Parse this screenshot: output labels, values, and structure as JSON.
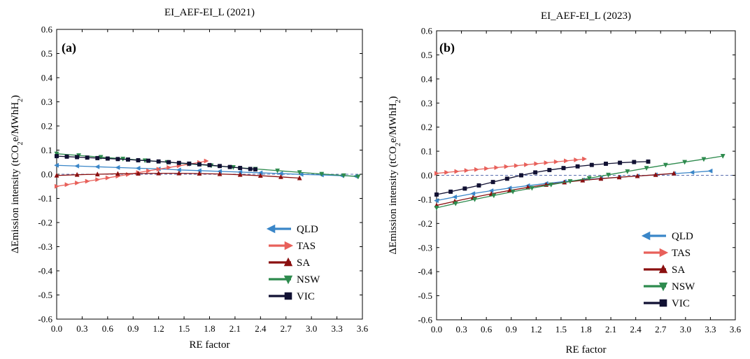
{
  "chart_data": [
    {
      "type": "line",
      "panel_label": "(a)",
      "title": "EI_AEF-EI_L (2021)",
      "xlabel": "RE factor",
      "ylabel": "ΔEmission intensity (tCO2e/MWhH2)",
      "xlim": [
        0,
        3.6
      ],
      "ylim": [
        -0.6,
        0.6
      ],
      "xticks": [
        "0.0",
        "0.3",
        "0.6",
        "0.9",
        "1.2",
        "1.5",
        "1.8",
        "2.1",
        "2.4",
        "2.7",
        "3.0",
        "3.3",
        "3.6"
      ],
      "yticks": [
        "0.6",
        "0.5",
        "0.4",
        "0.3",
        "0.2",
        "0.1",
        "0.0",
        "-0.1",
        "-0.2",
        "-0.3",
        "-0.4",
        "-0.5",
        "-0.6"
      ],
      "legend_position": "bottom-right",
      "zero_line": true,
      "series": [
        {
          "name": "QLD",
          "color": "#3a86c8",
          "marker": "triangle-left",
          "x": [
            0,
            0.24,
            0.48,
            0.72,
            0.96,
            1.2,
            1.44,
            1.68,
            1.92,
            2.16,
            2.4,
            2.64,
            2.88,
            3.12,
            3.36,
            3.52
          ],
          "y": [
            0.037,
            0.034,
            0.031,
            0.028,
            0.025,
            0.022,
            0.018,
            0.015,
            0.012,
            0.009,
            0.006,
            0.003,
            -0.0005,
            -0.003,
            -0.006,
            -0.008
          ]
        },
        {
          "name": "TAS",
          "color": "#e8605a",
          "marker": "triangle-right",
          "x": [
            0,
            0.12,
            0.24,
            0.36,
            0.48,
            0.6,
            0.72,
            0.84,
            0.96,
            1.08,
            1.2,
            1.32,
            1.44,
            1.56,
            1.68,
            1.76
          ],
          "y": [
            -0.05,
            -0.043,
            -0.036,
            -0.029,
            -0.022,
            -0.015,
            -0.008,
            -0.001,
            0.007,
            0.014,
            0.021,
            0.028,
            0.035,
            0.042,
            0.049,
            0.055
          ]
        },
        {
          "name": "SA",
          "color": "#8b1010",
          "marker": "triangle-up",
          "x": [
            0,
            0.24,
            0.48,
            0.72,
            0.96,
            1.2,
            1.44,
            1.68,
            1.92,
            2.16,
            2.4,
            2.64,
            2.86
          ],
          "y": [
            -0.005,
            -0.002,
            0.0,
            0.002,
            0.003,
            0.004,
            0.004,
            0.003,
            0.001,
            -0.002,
            -0.006,
            -0.011,
            -0.016
          ]
        },
        {
          "name": "NSW",
          "color": "#2e8b4e",
          "marker": "triangle-down",
          "x": [
            0,
            0.26,
            0.52,
            0.78,
            1.04,
            1.3,
            1.56,
            1.82,
            2.08,
            2.34,
            2.6,
            2.86,
            3.12,
            3.38,
            3.55
          ],
          "y": [
            0.085,
            0.078,
            0.071,
            0.064,
            0.057,
            0.05,
            0.043,
            0.036,
            0.029,
            0.022,
            0.015,
            0.008,
            0.001,
            -0.005,
            -0.01
          ]
        },
        {
          "name": "VIC",
          "color": "#111133",
          "marker": "square",
          "x": [
            0,
            0.12,
            0.24,
            0.36,
            0.48,
            0.6,
            0.72,
            0.84,
            0.96,
            1.08,
            1.2,
            1.32,
            1.44,
            1.56,
            1.68,
            1.8,
            1.92,
            2.04,
            2.16,
            2.28,
            2.34
          ],
          "y": [
            0.075,
            0.073,
            0.071,
            0.069,
            0.067,
            0.065,
            0.063,
            0.061,
            0.058,
            0.056,
            0.053,
            0.05,
            0.047,
            0.044,
            0.041,
            0.038,
            0.034,
            0.03,
            0.026,
            0.022,
            0.02
          ]
        }
      ]
    },
    {
      "type": "line",
      "panel_label": "(b)",
      "title": "EI_AEF-EI_L (2023)",
      "xlabel": "RE factor",
      "ylabel": "ΔEmission intensity (tCO2e/MWhH2)",
      "xlim": [
        0,
        3.6
      ],
      "ylim": [
        -0.6,
        0.6
      ],
      "xticks": [
        "0.0",
        "0.3",
        "0.6",
        "0.9",
        "1.2",
        "1.5",
        "1.8",
        "2.1",
        "2.4",
        "2.7",
        "3.0",
        "3.3",
        "3.6"
      ],
      "yticks": [
        "0.6",
        "0.5",
        "0.4",
        "0.3",
        "0.2",
        "0.1",
        "0.0",
        "-0.1",
        "-0.2",
        "-0.3",
        "-0.4",
        "-0.5",
        "-0.6"
      ],
      "legend_position": "bottom-right",
      "zero_line": true,
      "series": [
        {
          "name": "QLD",
          "color": "#3a86c8",
          "marker": "triangle-left",
          "x": [
            0,
            0.22,
            0.44,
            0.66,
            0.88,
            1.1,
            1.32,
            1.54,
            1.76,
            1.98,
            2.2,
            2.42,
            2.64,
            2.86,
            3.08,
            3.3
          ],
          "y": [
            -0.105,
            -0.09,
            -0.076,
            -0.064,
            -0.053,
            -0.043,
            -0.034,
            -0.026,
            -0.019,
            -0.013,
            -0.008,
            -0.003,
            0.002,
            0.007,
            0.012,
            0.018
          ]
        },
        {
          "name": "TAS",
          "color": "#e8605a",
          "marker": "triangle-right",
          "x": [
            0,
            0.12,
            0.24,
            0.36,
            0.48,
            0.6,
            0.72,
            0.84,
            0.96,
            1.08,
            1.2,
            1.32,
            1.44,
            1.56,
            1.68,
            1.78
          ],
          "y": [
            0.008,
            0.012,
            0.016,
            0.02,
            0.024,
            0.028,
            0.032,
            0.036,
            0.04,
            0.044,
            0.048,
            0.052,
            0.056,
            0.06,
            0.064,
            0.068
          ]
        },
        {
          "name": "SA",
          "color": "#8b1010",
          "marker": "triangle-up",
          "x": [
            0,
            0.22,
            0.44,
            0.66,
            0.88,
            1.1,
            1.32,
            1.54,
            1.76,
            1.98,
            2.2,
            2.42,
            2.64,
            2.86
          ],
          "y": [
            -0.125,
            -0.108,
            -0.092,
            -0.077,
            -0.063,
            -0.05,
            -0.039,
            -0.029,
            -0.021,
            -0.014,
            -0.008,
            -0.003,
            0.002,
            0.008
          ]
        },
        {
          "name": "NSW",
          "color": "#2e8b4e",
          "marker": "triangle-down",
          "x": [
            0,
            0.23,
            0.46,
            0.69,
            0.92,
            1.15,
            1.38,
            1.61,
            1.84,
            2.07,
            2.3,
            2.53,
            2.76,
            2.99,
            3.22,
            3.45
          ],
          "y": [
            -0.135,
            -0.117,
            -0.1,
            -0.084,
            -0.068,
            -0.053,
            -0.039,
            -0.025,
            -0.012,
            0.002,
            0.016,
            0.03,
            0.043,
            0.055,
            0.067,
            0.08
          ]
        },
        {
          "name": "VIC",
          "color": "#111133",
          "marker": "square",
          "x": [
            0,
            0.17,
            0.34,
            0.51,
            0.68,
            0.85,
            1.02,
            1.19,
            1.36,
            1.53,
            1.7,
            1.87,
            2.04,
            2.21,
            2.38,
            2.55
          ],
          "y": [
            -0.08,
            -0.068,
            -0.055,
            -0.042,
            -0.028,
            -0.014,
            0.0,
            0.012,
            0.022,
            0.03,
            0.037,
            0.043,
            0.048,
            0.052,
            0.055,
            0.057
          ]
        }
      ]
    }
  ]
}
